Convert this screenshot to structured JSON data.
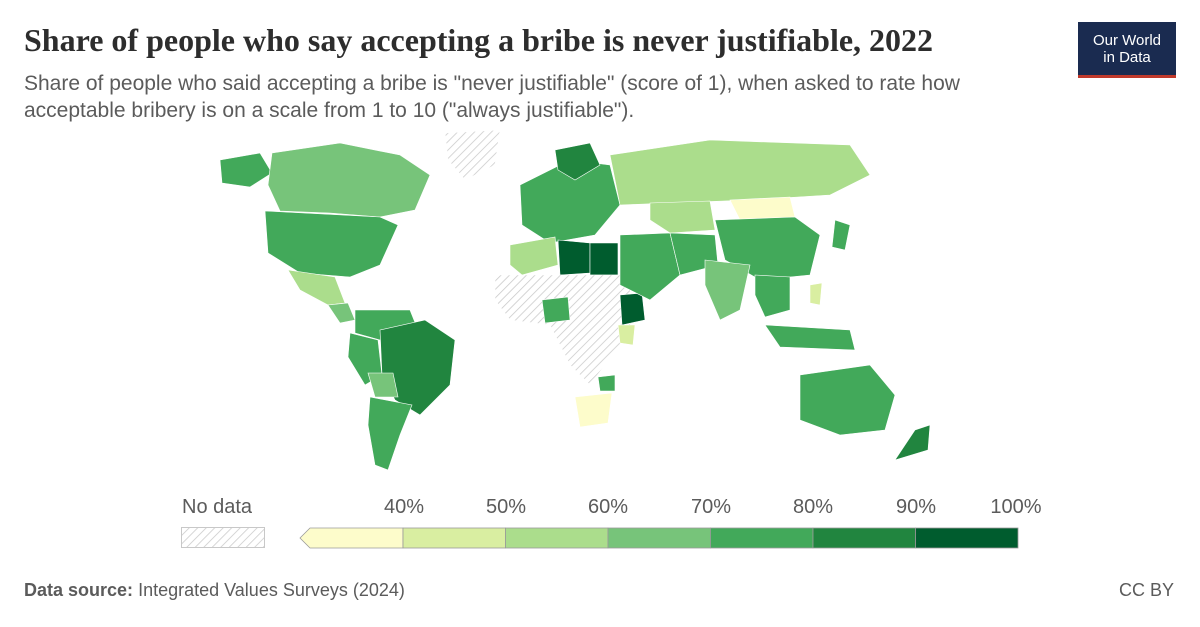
{
  "header": {
    "title": "Share of people who say accepting a bribe is never justifiable, 2022",
    "subtitle": "Share of people who said accepting a bribe is \"never justifiable\" (score of 1), when asked to rate how acceptable bribery is on a scale from 1 to 10 (\"always justifiable\")."
  },
  "logo": {
    "line1": "Our World",
    "line2": "in Data"
  },
  "legend": {
    "no_data_label": "No data",
    "ticks": [
      "40%",
      "50%",
      "60%",
      "70%",
      "80%",
      "90%",
      "100%"
    ],
    "colors": [
      "#fdfccb",
      "#d9eea1",
      "#abdd8c",
      "#77c47a",
      "#42a95a",
      "#21853f",
      "#005c2e"
    ],
    "no_data_color": "#dcdcdc"
  },
  "footer": {
    "source_label": "Data source:",
    "source_text": "Integrated Values Surveys (2024)",
    "license": "CC BY"
  }
}
